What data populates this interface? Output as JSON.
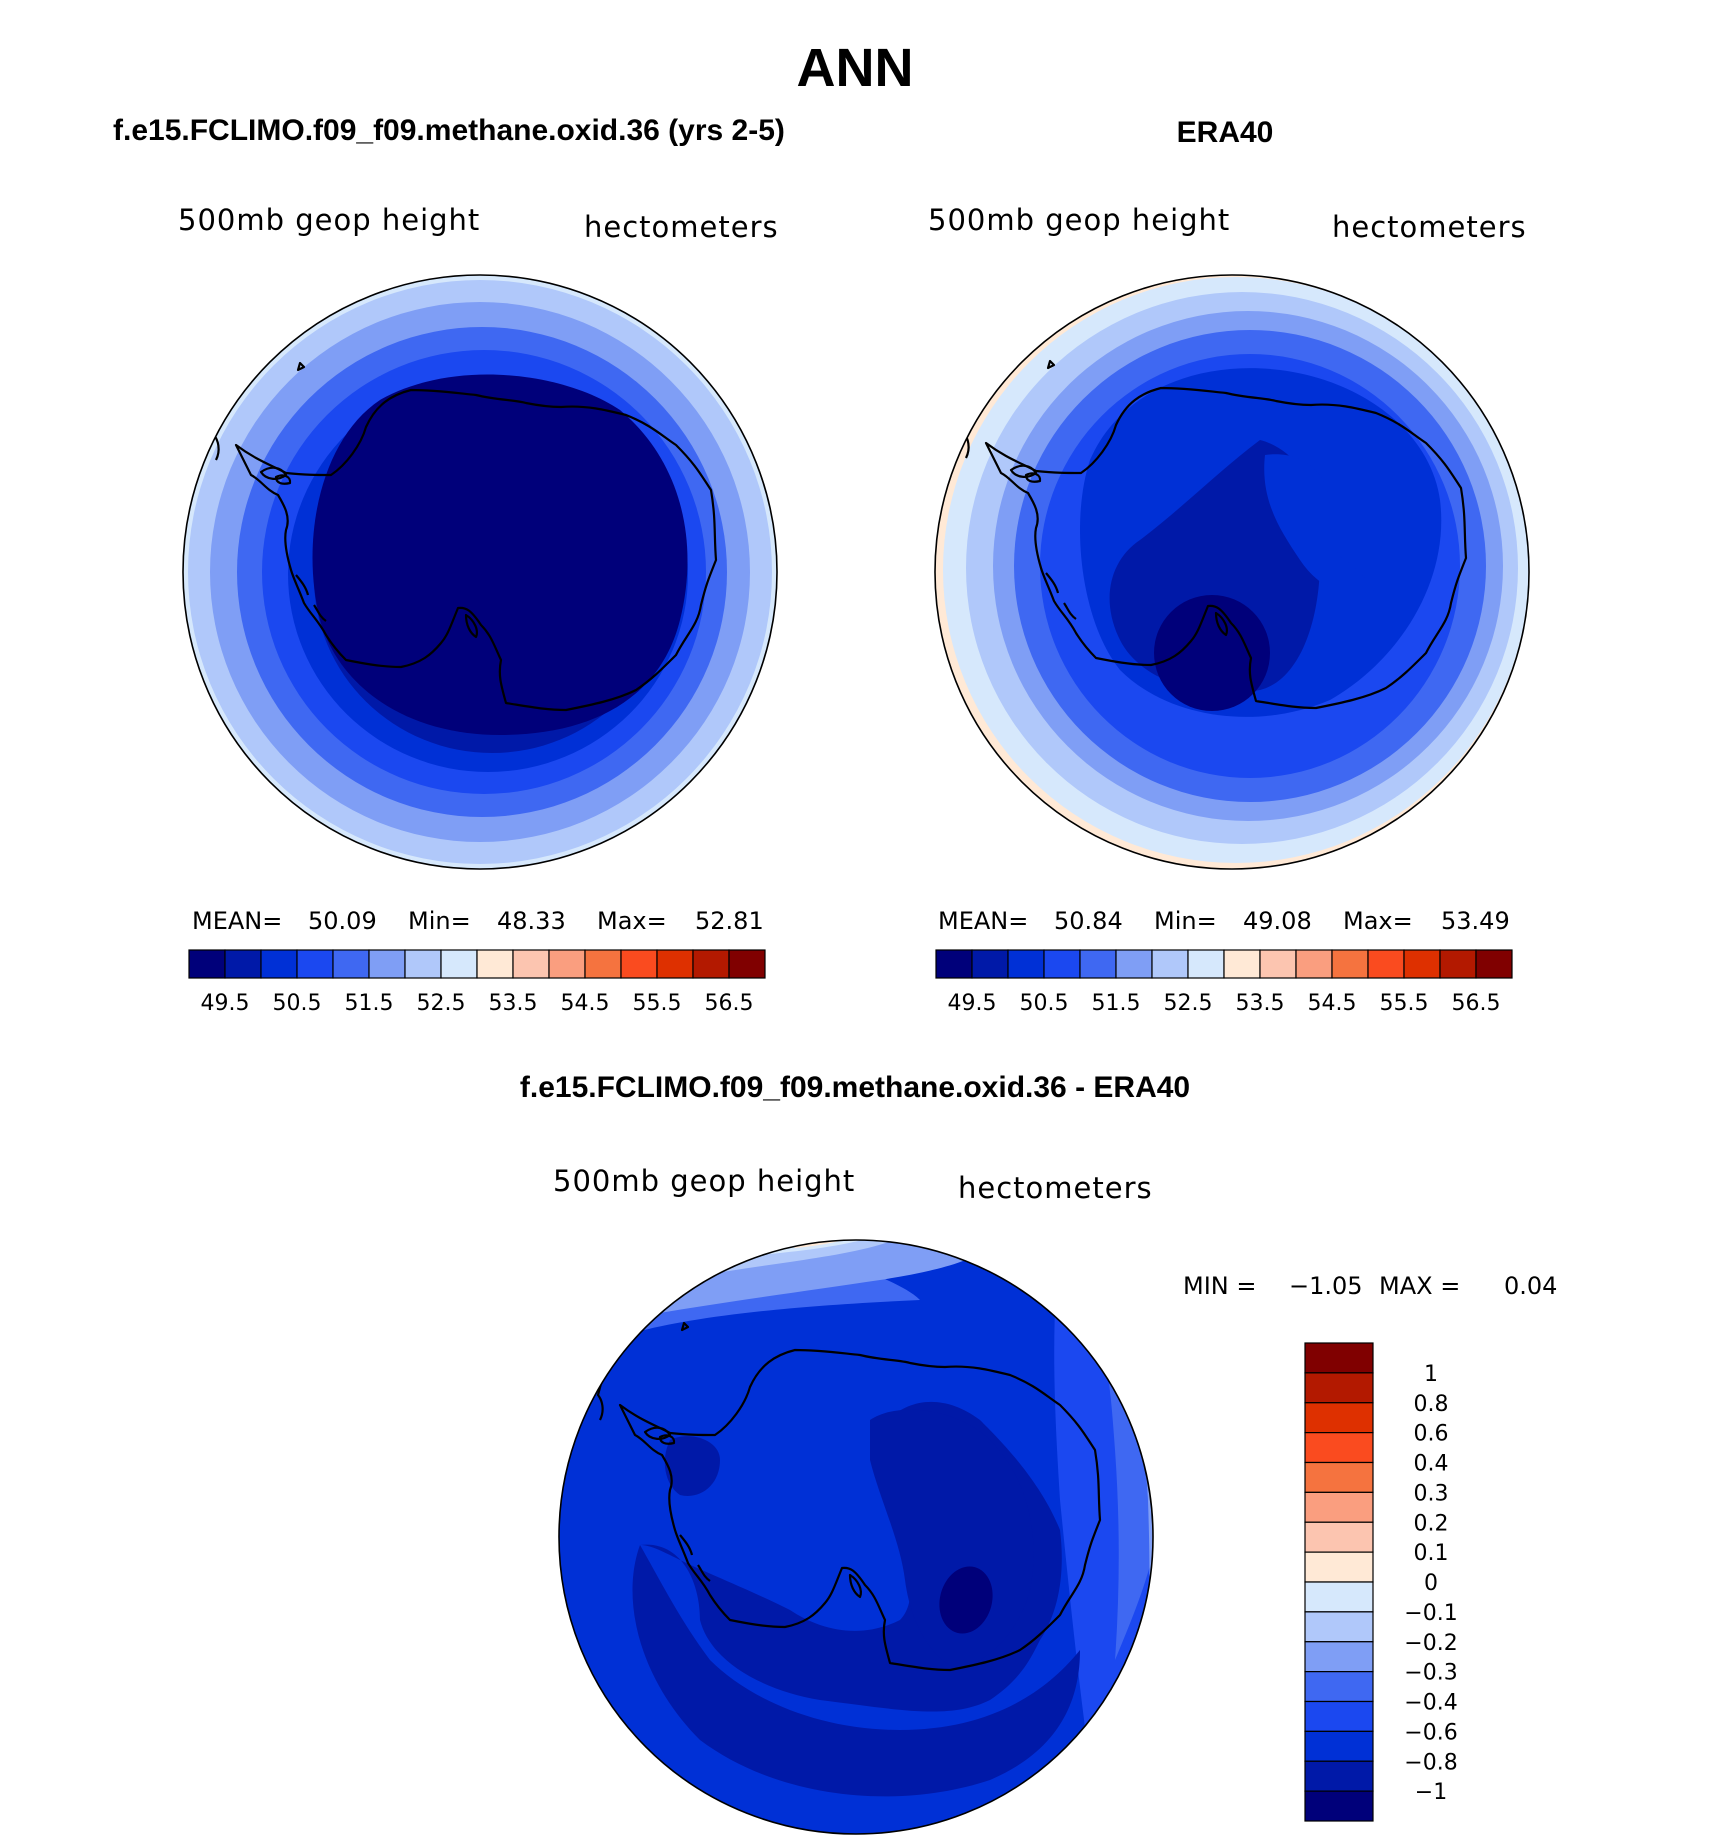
{
  "page_title": "ANN",
  "colors": {
    "palette16": [
      "#00007a",
      "#0019a8",
      "#0030d6",
      "#1b48f0",
      "#3f68f2",
      "#7f9ef5",
      "#b0c8fa",
      "#d6e8fc",
      "#ffe9d6",
      "#fcc5b0",
      "#fa9e7f",
      "#f5733f",
      "#fa4b1f",
      "#de3000",
      "#b31900",
      "#800000"
    ],
    "coastline": "#000000"
  },
  "chart_data": [
    {
      "type": "polar-contour",
      "name": "model",
      "title": "f.e15.FCLIMO.f09_f09.methane.oxid.36 (yrs 2-5)",
      "variable_label": "500mb geop height",
      "units_label": "hectometers",
      "stats": {
        "mean_label": "MEAN=",
        "mean": "50.09",
        "min_label": "Min=",
        "min": "48.33",
        "max_label": "Max=",
        "max": "52.81"
      },
      "colorbar": {
        "orientation": "horizontal",
        "levels": [
          49.0,
          49.5,
          50.0,
          50.5,
          51.0,
          51.5,
          52.0,
          52.5,
          53.0,
          53.5,
          54.0,
          54.5,
          55.0,
          55.5,
          56.0,
          56.5
        ],
        "tick_labels": [
          "49.5",
          "50.5",
          "51.5",
          "52.5",
          "53.5",
          "54.5",
          "55.5",
          "56.5"
        ]
      }
    },
    {
      "type": "polar-contour",
      "name": "obs",
      "title": "ERA40",
      "variable_label": "500mb geop height",
      "units_label": "hectometers",
      "stats": {
        "mean_label": "MEAN=",
        "mean": "50.84",
        "min_label": "Min=",
        "min": "49.08",
        "max_label": "Max=",
        "max": "53.49"
      },
      "colorbar": {
        "orientation": "horizontal",
        "levels": [
          49.0,
          49.5,
          50.0,
          50.5,
          51.0,
          51.5,
          52.0,
          52.5,
          53.0,
          53.5,
          54.0,
          54.5,
          55.0,
          55.5,
          56.0,
          56.5
        ],
        "tick_labels": [
          "49.5",
          "50.5",
          "51.5",
          "52.5",
          "53.5",
          "54.5",
          "55.5",
          "56.5"
        ]
      }
    },
    {
      "type": "polar-contour",
      "name": "difference",
      "title": "f.e15.FCLIMO.f09_f09.methane.oxid.36 - ERA40",
      "variable_label": "500mb geop height",
      "units_label": "hectometers",
      "stats": {
        "min_label": "MIN =",
        "min": "−1.05",
        "max_label": "MAX =",
        "max": "0.04"
      },
      "colorbar": {
        "orientation": "vertical",
        "levels": [
          -1,
          -0.8,
          -0.6,
          -0.4,
          -0.3,
          -0.2,
          -0.1,
          0,
          0.1,
          0.2,
          0.3,
          0.4,
          0.6,
          0.8,
          1
        ],
        "tick_labels": [
          "1",
          "0.8",
          "0.6",
          "0.4",
          "0.3",
          "0.2",
          "0.1",
          "0",
          "−0.1",
          "−0.2",
          "−0.3",
          "−0.4",
          "−0.6",
          "−0.8",
          "−1"
        ]
      }
    }
  ]
}
